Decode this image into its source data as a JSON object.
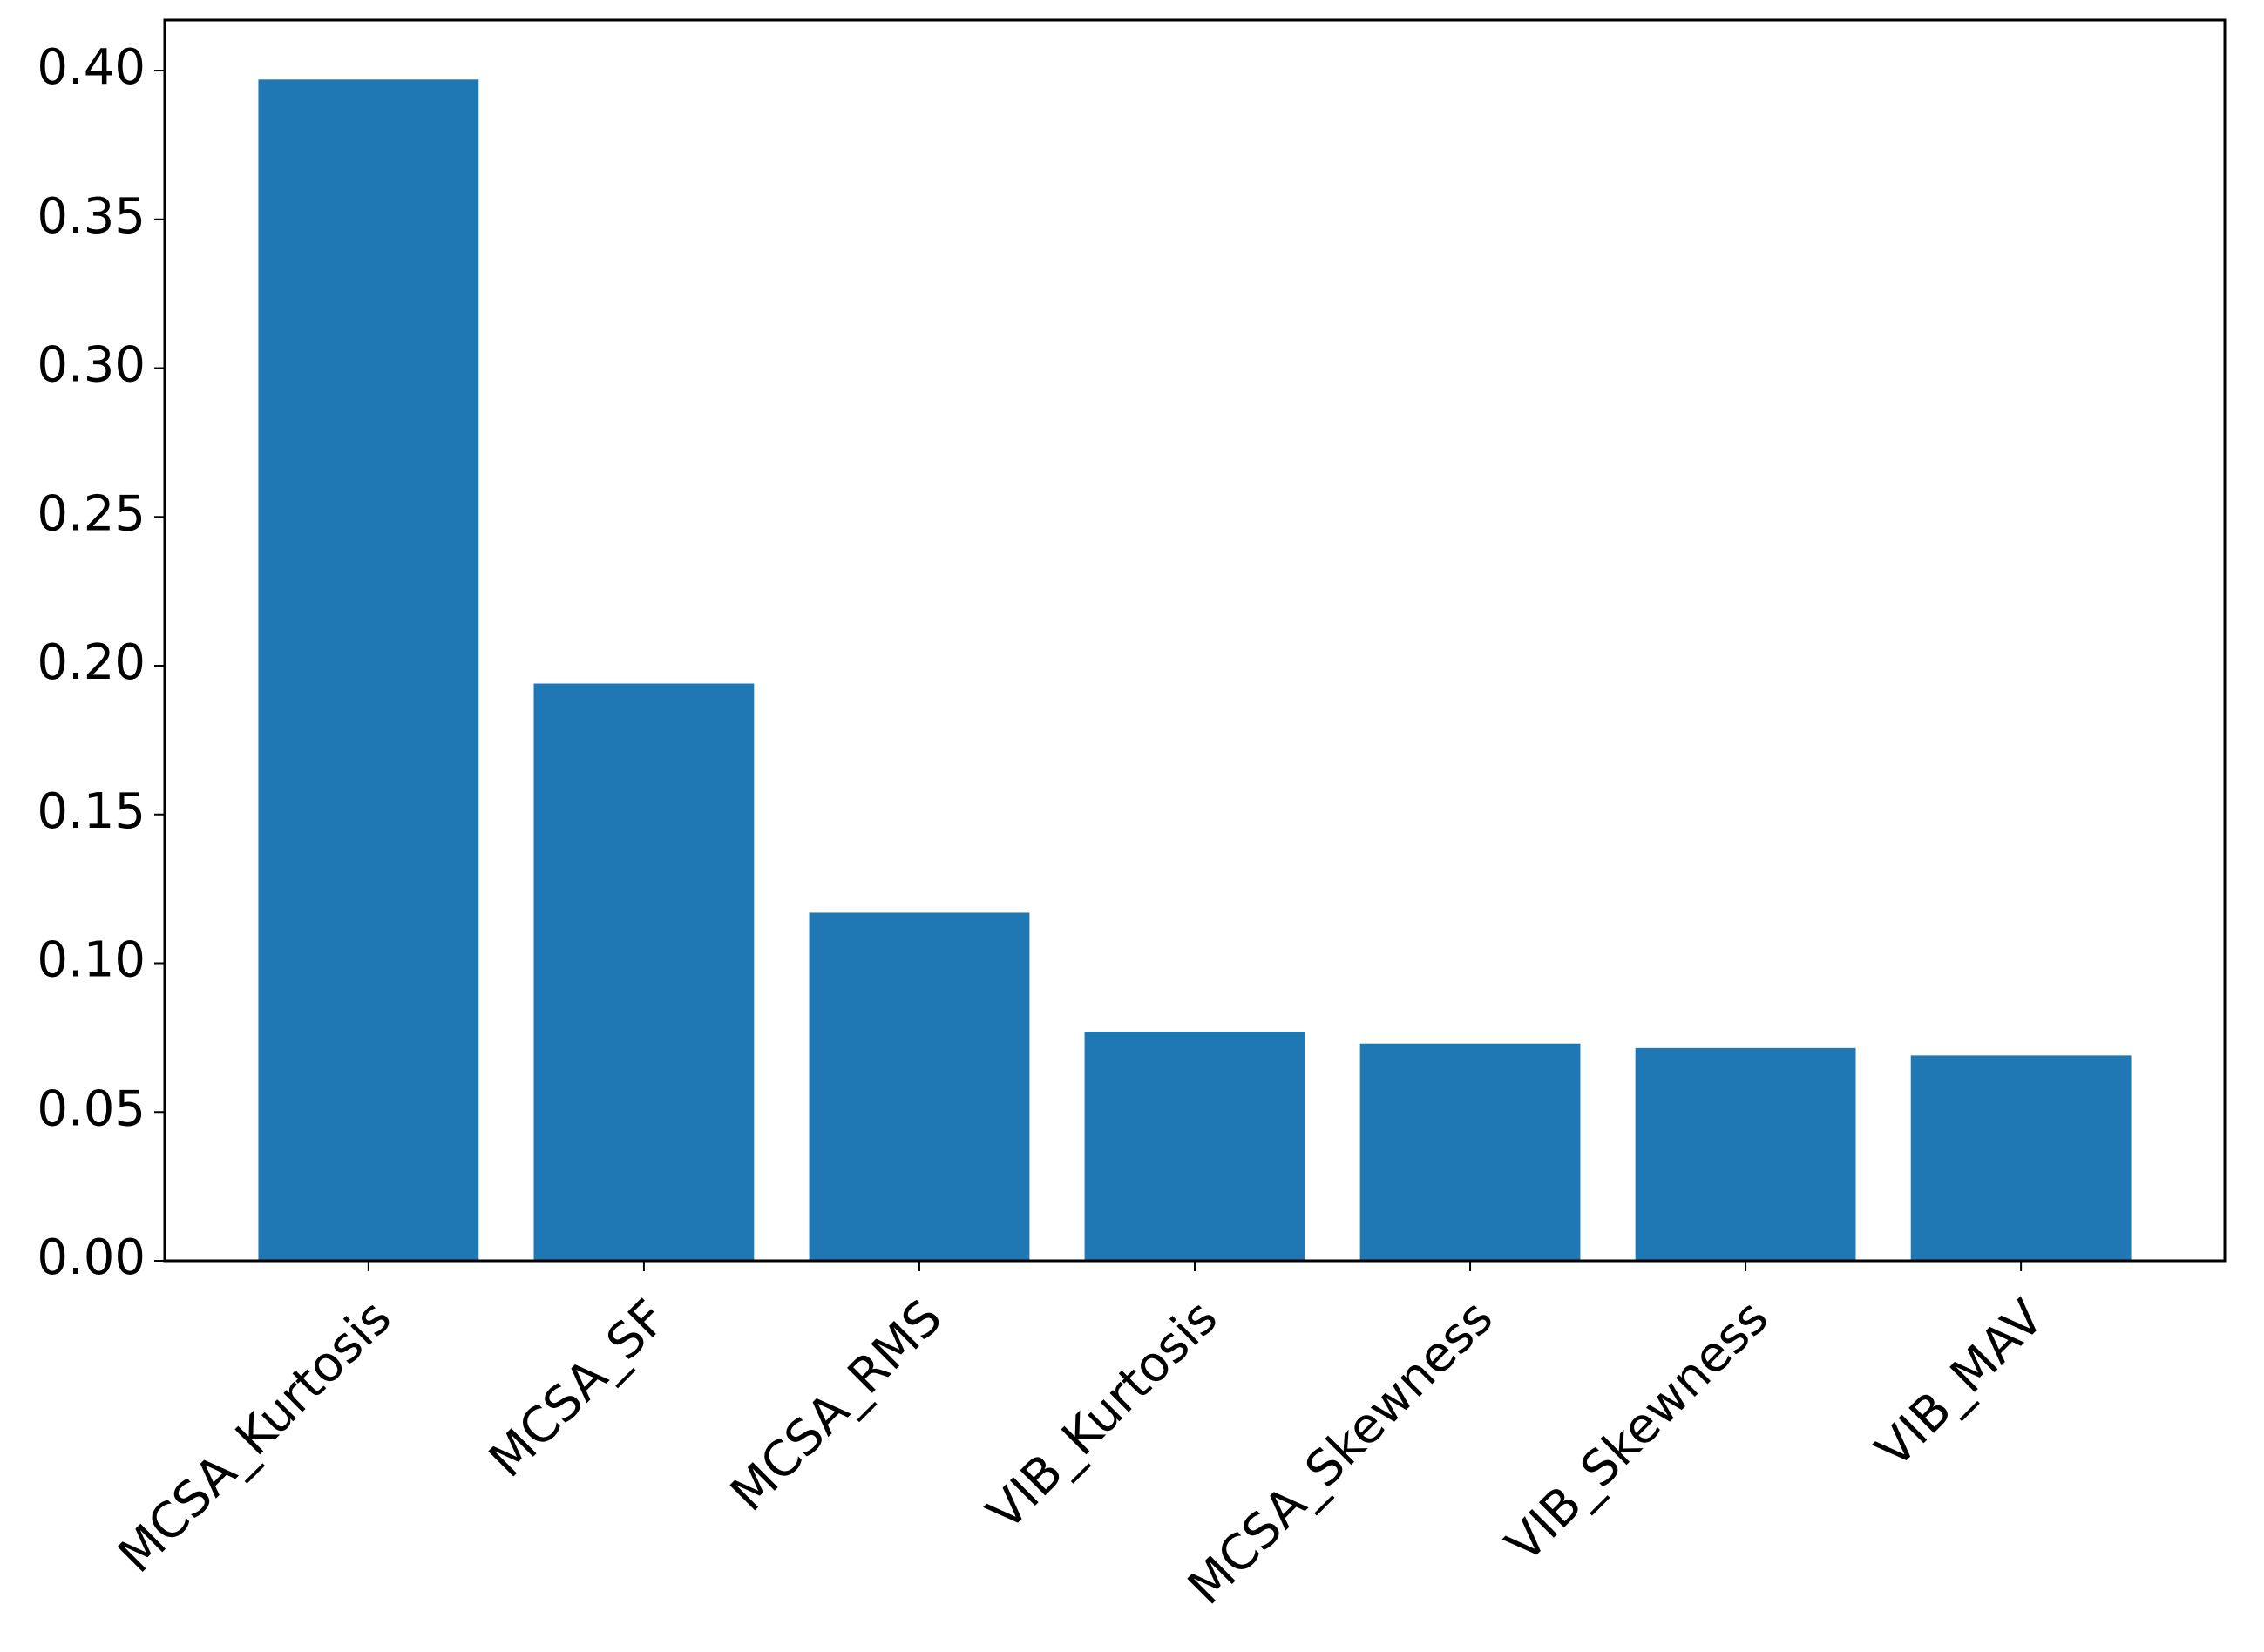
{
  "chart_data": {
    "type": "bar",
    "categories": [
      "MCSA_Kurtosis",
      "MCSA_SF",
      "MCSA_RMS",
      "VIB_Kurtosis",
      "MCSA_Skewness",
      "VIB_Skewness",
      "VIB_MAV"
    ],
    "values": [
      0.397,
      0.194,
      0.117,
      0.077,
      0.073,
      0.0715,
      0.069
    ],
    "color": "#1f77b4",
    "ylim": [
      0,
      0.417
    ],
    "yticks": [
      {
        "value": 0,
        "label": "0.00"
      },
      {
        "value": 0.05,
        "label": "0.05"
      },
      {
        "value": 0.1,
        "label": "0.10"
      },
      {
        "value": 0.15,
        "label": "0.15"
      },
      {
        "value": 0.2,
        "label": "0.20"
      },
      {
        "value": 0.25,
        "label": "0.25"
      },
      {
        "value": 0.3,
        "label": "0.30"
      },
      {
        "value": 0.35,
        "label": "0.35"
      },
      {
        "value": 0.4,
        "label": "0.40"
      }
    ],
    "grid": false
  }
}
